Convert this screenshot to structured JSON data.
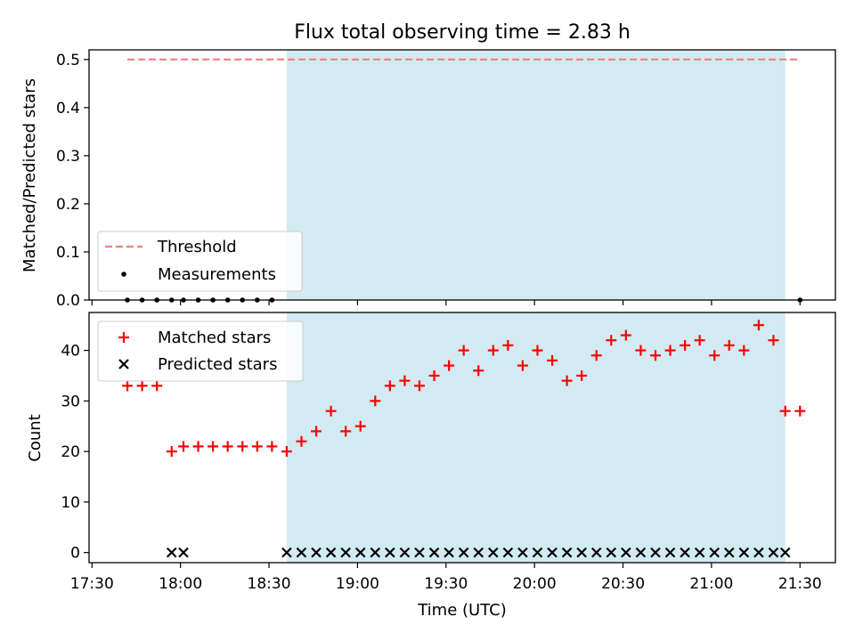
{
  "figure": {
    "title": "Flux total observing time = 2.83 h"
  },
  "colors": {
    "observing_band": "#add8e6",
    "threshold": "#f08080",
    "measurements": "#000000",
    "matched": "#ff0000",
    "predicted": "#000000"
  },
  "chart_data": [
    {
      "type": "scatter",
      "ylabel": "Matched/Predicted stars",
      "ylim": [
        0,
        0.52
      ],
      "yticks": [
        0.0,
        0.1,
        0.2,
        0.3,
        0.4,
        0.5
      ],
      "ytick_labels": [
        "0.0",
        "0.1",
        "0.2",
        "0.3",
        "0.4",
        "0.5"
      ],
      "xlim": [
        "17:29",
        "21:42"
      ],
      "grid": false,
      "legend_position": "lower-left",
      "observing_band": [
        "18:36",
        "21:25"
      ],
      "threshold": {
        "name": "Threshold",
        "value": 0.5,
        "x_range": [
          "17:42",
          "21:30"
        ],
        "style": "dashed"
      },
      "series": [
        {
          "name": "Measurements",
          "marker": "dot",
          "x": [
            "17:42",
            "17:47",
            "17:52",
            "17:57",
            "18:01",
            "18:06",
            "18:11",
            "18:16",
            "18:21",
            "18:26",
            "18:31",
            "21:30"
          ],
          "y": [
            0,
            0,
            0,
            0,
            0,
            0,
            0,
            0,
            0,
            0,
            0,
            0
          ]
        }
      ]
    },
    {
      "type": "scatter",
      "ylabel": "Count",
      "xlabel": "Time (UTC)",
      "ylim": [
        -2,
        47.5
      ],
      "yticks": [
        0,
        10,
        20,
        30,
        40
      ],
      "ytick_labels": [
        "0",
        "10",
        "20",
        "30",
        "40"
      ],
      "xlim": [
        "17:29",
        "21:42"
      ],
      "xticks": [
        "17:30",
        "18:00",
        "18:30",
        "19:00",
        "19:30",
        "20:00",
        "20:30",
        "21:00",
        "21:30"
      ],
      "grid": false,
      "legend_position": "upper-left",
      "observing_band": [
        "18:36",
        "21:25"
      ],
      "series": [
        {
          "name": "Matched stars",
          "marker": "plus",
          "x": [
            "17:42",
            "17:47",
            "17:52",
            "17:57",
            "18:01",
            "18:06",
            "18:11",
            "18:16",
            "18:21",
            "18:26",
            "18:31",
            "18:36",
            "18:41",
            "18:46",
            "18:51",
            "18:56",
            "19:01",
            "19:06",
            "19:11",
            "19:16",
            "19:21",
            "19:26",
            "19:31",
            "19:36",
            "19:41",
            "19:46",
            "19:51",
            "19:56",
            "20:01",
            "20:06",
            "20:11",
            "20:16",
            "20:21",
            "20:26",
            "20:31",
            "20:36",
            "20:41",
            "20:46",
            "20:51",
            "20:56",
            "21:01",
            "21:06",
            "21:11",
            "21:16",
            "21:21",
            "21:25",
            "21:30"
          ],
          "y": [
            33,
            33,
            33,
            20,
            21,
            21,
            21,
            21,
            21,
            21,
            21,
            20,
            22,
            24,
            28,
            24,
            25,
            30,
            33,
            34,
            33,
            35,
            37,
            40,
            36,
            40,
            41,
            37,
            40,
            38,
            34,
            35,
            39,
            42,
            43,
            40,
            39,
            40,
            41,
            42,
            39,
            41,
            40,
            45,
            42,
            28,
            28
          ]
        },
        {
          "name": "Predicted stars",
          "marker": "x",
          "x": [
            "17:57",
            "18:01",
            "18:36",
            "18:41",
            "18:46",
            "18:51",
            "18:56",
            "19:01",
            "19:06",
            "19:11",
            "19:16",
            "19:21",
            "19:26",
            "19:31",
            "19:36",
            "19:41",
            "19:46",
            "19:51",
            "19:56",
            "20:01",
            "20:06",
            "20:11",
            "20:16",
            "20:21",
            "20:26",
            "20:31",
            "20:36",
            "20:41",
            "20:46",
            "20:51",
            "20:56",
            "21:01",
            "21:06",
            "21:11",
            "21:16",
            "21:21",
            "21:25"
          ],
          "y": [
            0,
            0,
            0,
            0,
            0,
            0,
            0,
            0,
            0,
            0,
            0,
            0,
            0,
            0,
            0,
            0,
            0,
            0,
            0,
            0,
            0,
            0,
            0,
            0,
            0,
            0,
            0,
            0,
            0,
            0,
            0,
            0,
            0,
            0,
            0,
            0,
            0
          ]
        }
      ]
    }
  ]
}
